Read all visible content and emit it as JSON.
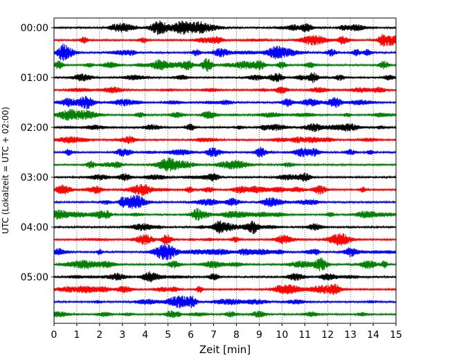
{
  "chart_data": {
    "type": "line",
    "xlabel": "Zeit  [min]",
    "ylabel": "UTC (Lokalzeit = UTC + 02:00)",
    "xlim": [
      0,
      15
    ],
    "x_ticks": [
      0,
      1,
      2,
      3,
      4,
      5,
      6,
      7,
      8,
      9,
      10,
      11,
      12,
      13,
      14,
      15
    ],
    "y_tick_labels": [
      "00:00",
      "01:00",
      "02:00",
      "03:00",
      "04:00",
      "05:00"
    ],
    "row_interval_minutes": 15,
    "row_count": 24,
    "row_colors": [
      "#000000",
      "#ff0000",
      "#0000ff",
      "#008000"
    ],
    "grid": "vertical dotted lines at each minute"
  }
}
